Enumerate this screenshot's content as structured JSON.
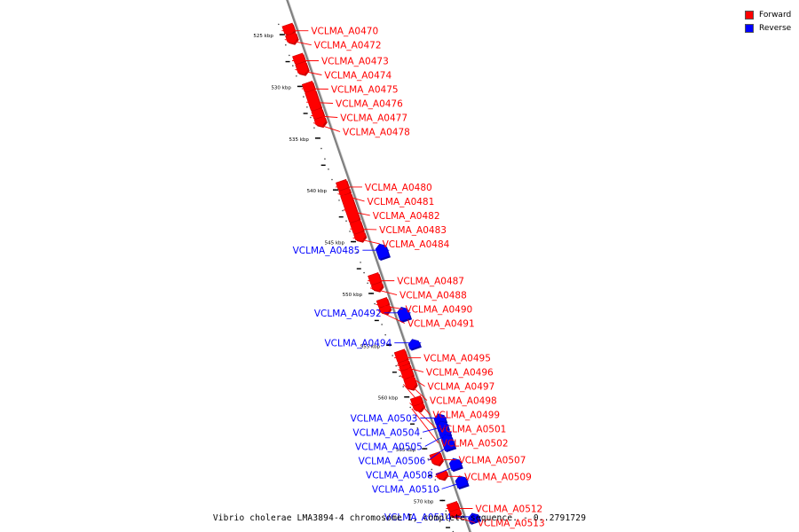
{
  "caption": "Vibrio cholerae LMA3894-4 chromosome I, complete sequence. - 0..2791729",
  "legend": {
    "forward": {
      "label": "Forward",
      "color": "#ff0000"
    },
    "reverse": {
      "label": "Reverse",
      "color": "#0000ff"
    }
  },
  "colors": {
    "forward": "#ff0000",
    "forward_dark": "#c80000",
    "reverse": "#0000ff",
    "reverse_dark": "#0000b4",
    "backbone": "#808080"
  },
  "scale": {
    "unit": "kbp",
    "start": 524,
    "end": 573,
    "ticks": [
      {
        "pos": 525,
        "label": "525 kbp"
      },
      {
        "pos": 530,
        "label": "530 kbp"
      },
      {
        "pos": 535,
        "label": "535 kbp"
      },
      {
        "pos": 540,
        "label": "540 kbp"
      },
      {
        "pos": 545,
        "label": "545 kbp"
      },
      {
        "pos": 550,
        "label": "550 kbp"
      },
      {
        "pos": 555,
        "label": "555 kbp"
      },
      {
        "pos": 560,
        "label": "560 kbp"
      },
      {
        "pos": 565,
        "label": "565 kbp"
      },
      {
        "pos": 570,
        "label": "570 kbp"
      }
    ]
  },
  "genes": [
    {
      "name": "VCLMA_A0470",
      "strand": "forward",
      "start": 524.3,
      "end": 525.0
    },
    {
      "name": "VCLMA_A0472",
      "strand": "forward",
      "start": 525.2,
      "end": 525.8
    },
    {
      "name": "VCLMA_A0473",
      "strand": "forward",
      "start": 527.2,
      "end": 527.9
    },
    {
      "name": "VCLMA_A0474",
      "strand": "forward",
      "start": 528.0,
      "end": 528.8
    },
    {
      "name": "VCLMA_A0475",
      "strand": "forward",
      "start": 529.9,
      "end": 530.6
    },
    {
      "name": "VCLMA_A0476",
      "strand": "forward",
      "start": 530.7,
      "end": 532.4
    },
    {
      "name": "VCLMA_A0477",
      "strand": "forward",
      "start": 532.5,
      "end": 533.2
    },
    {
      "name": "VCLMA_A0478",
      "strand": "forward",
      "start": 533.3,
      "end": 533.8
    },
    {
      "name": "VCLMA_A0480",
      "strand": "forward",
      "start": 539.4,
      "end": 540.1
    },
    {
      "name": "VCLMA_A0481",
      "strand": "forward",
      "start": 540.2,
      "end": 540.6
    },
    {
      "name": "VCLMA_A0482",
      "strand": "forward",
      "start": 540.7,
      "end": 543.2
    },
    {
      "name": "VCLMA_A0483",
      "strand": "forward",
      "start": 543.3,
      "end": 544.3
    },
    {
      "name": "VCLMA_A0484",
      "strand": "forward",
      "start": 544.4,
      "end": 544.9
    },
    {
      "name": "VCLMA_A0485",
      "strand": "reverse",
      "start": 546.3,
      "end": 547.3
    },
    {
      "name": "VCLMA_A0487",
      "strand": "forward",
      "start": 548.4,
      "end": 549.2
    },
    {
      "name": "VCLMA_A0488",
      "strand": "forward",
      "start": 549.3,
      "end": 549.7
    },
    {
      "name": "VCLMA_A0490",
      "strand": "forward",
      "start": 550.8,
      "end": 551.4
    },
    {
      "name": "VCLMA_A0491",
      "strand": "forward",
      "start": 551.5,
      "end": 551.9
    },
    {
      "name": "VCLMA_A0492",
      "strand": "reverse",
      "start": 552.4,
      "end": 553.3
    },
    {
      "name": "VCLMA_A0494",
      "strand": "reverse",
      "start": 555.5,
      "end": 556.0
    },
    {
      "name": "VCLMA_A0495",
      "strand": "forward",
      "start": 555.8,
      "end": 556.7
    },
    {
      "name": "VCLMA_A0496",
      "strand": "forward",
      "start": 556.8,
      "end": 557.1
    },
    {
      "name": "VCLMA_A0497",
      "strand": "forward",
      "start": 557.2,
      "end": 557.5
    },
    {
      "name": "VCLMA_A0498",
      "strand": "forward",
      "start": 557.6,
      "end": 558.3
    },
    {
      "name": "VCLMA_A0499",
      "strand": "forward",
      "start": 558.4,
      "end": 559.2
    },
    {
      "name": "VCLMA_A0501",
      "strand": "forward",
      "start": 560.3,
      "end": 560.9
    },
    {
      "name": "VCLMA_A0502",
      "strand": "forward",
      "start": 561.0,
      "end": 561.3
    },
    {
      "name": "VCLMA_A0503",
      "strand": "reverse",
      "start": 562.7,
      "end": 563.3
    },
    {
      "name": "VCLMA_A0504",
      "strand": "reverse",
      "start": 563.4,
      "end": 564.0
    },
    {
      "name": "VCLMA_A0505",
      "strand": "reverse",
      "start": 564.1,
      "end": 564.6
    },
    {
      "name": "VCLMA_A0506",
      "strand": "reverse",
      "start": 564.7,
      "end": 565.8
    },
    {
      "name": "VCLMA_A0507",
      "strand": "forward",
      "start": 565.7,
      "end": 566.5
    },
    {
      "name": "VCLMA_A0508",
      "strand": "reverse",
      "start": 567.0,
      "end": 567.7
    },
    {
      "name": "VCLMA_A0509",
      "strand": "forward",
      "start": 567.5,
      "end": 567.9
    },
    {
      "name": "VCLMA_A0510",
      "strand": "reverse",
      "start": 568.7,
      "end": 569.4
    },
    {
      "name": "VCLMA_A0512",
      "strand": "forward",
      "start": 570.5,
      "end": 571.1
    },
    {
      "name": "VCLMA_A0513",
      "strand": "forward",
      "start": 571.2,
      "end": 571.6
    },
    {
      "name": "VCLMA_A0514",
      "strand": "reverse",
      "start": 572.3,
      "end": 572.8
    }
  ]
}
